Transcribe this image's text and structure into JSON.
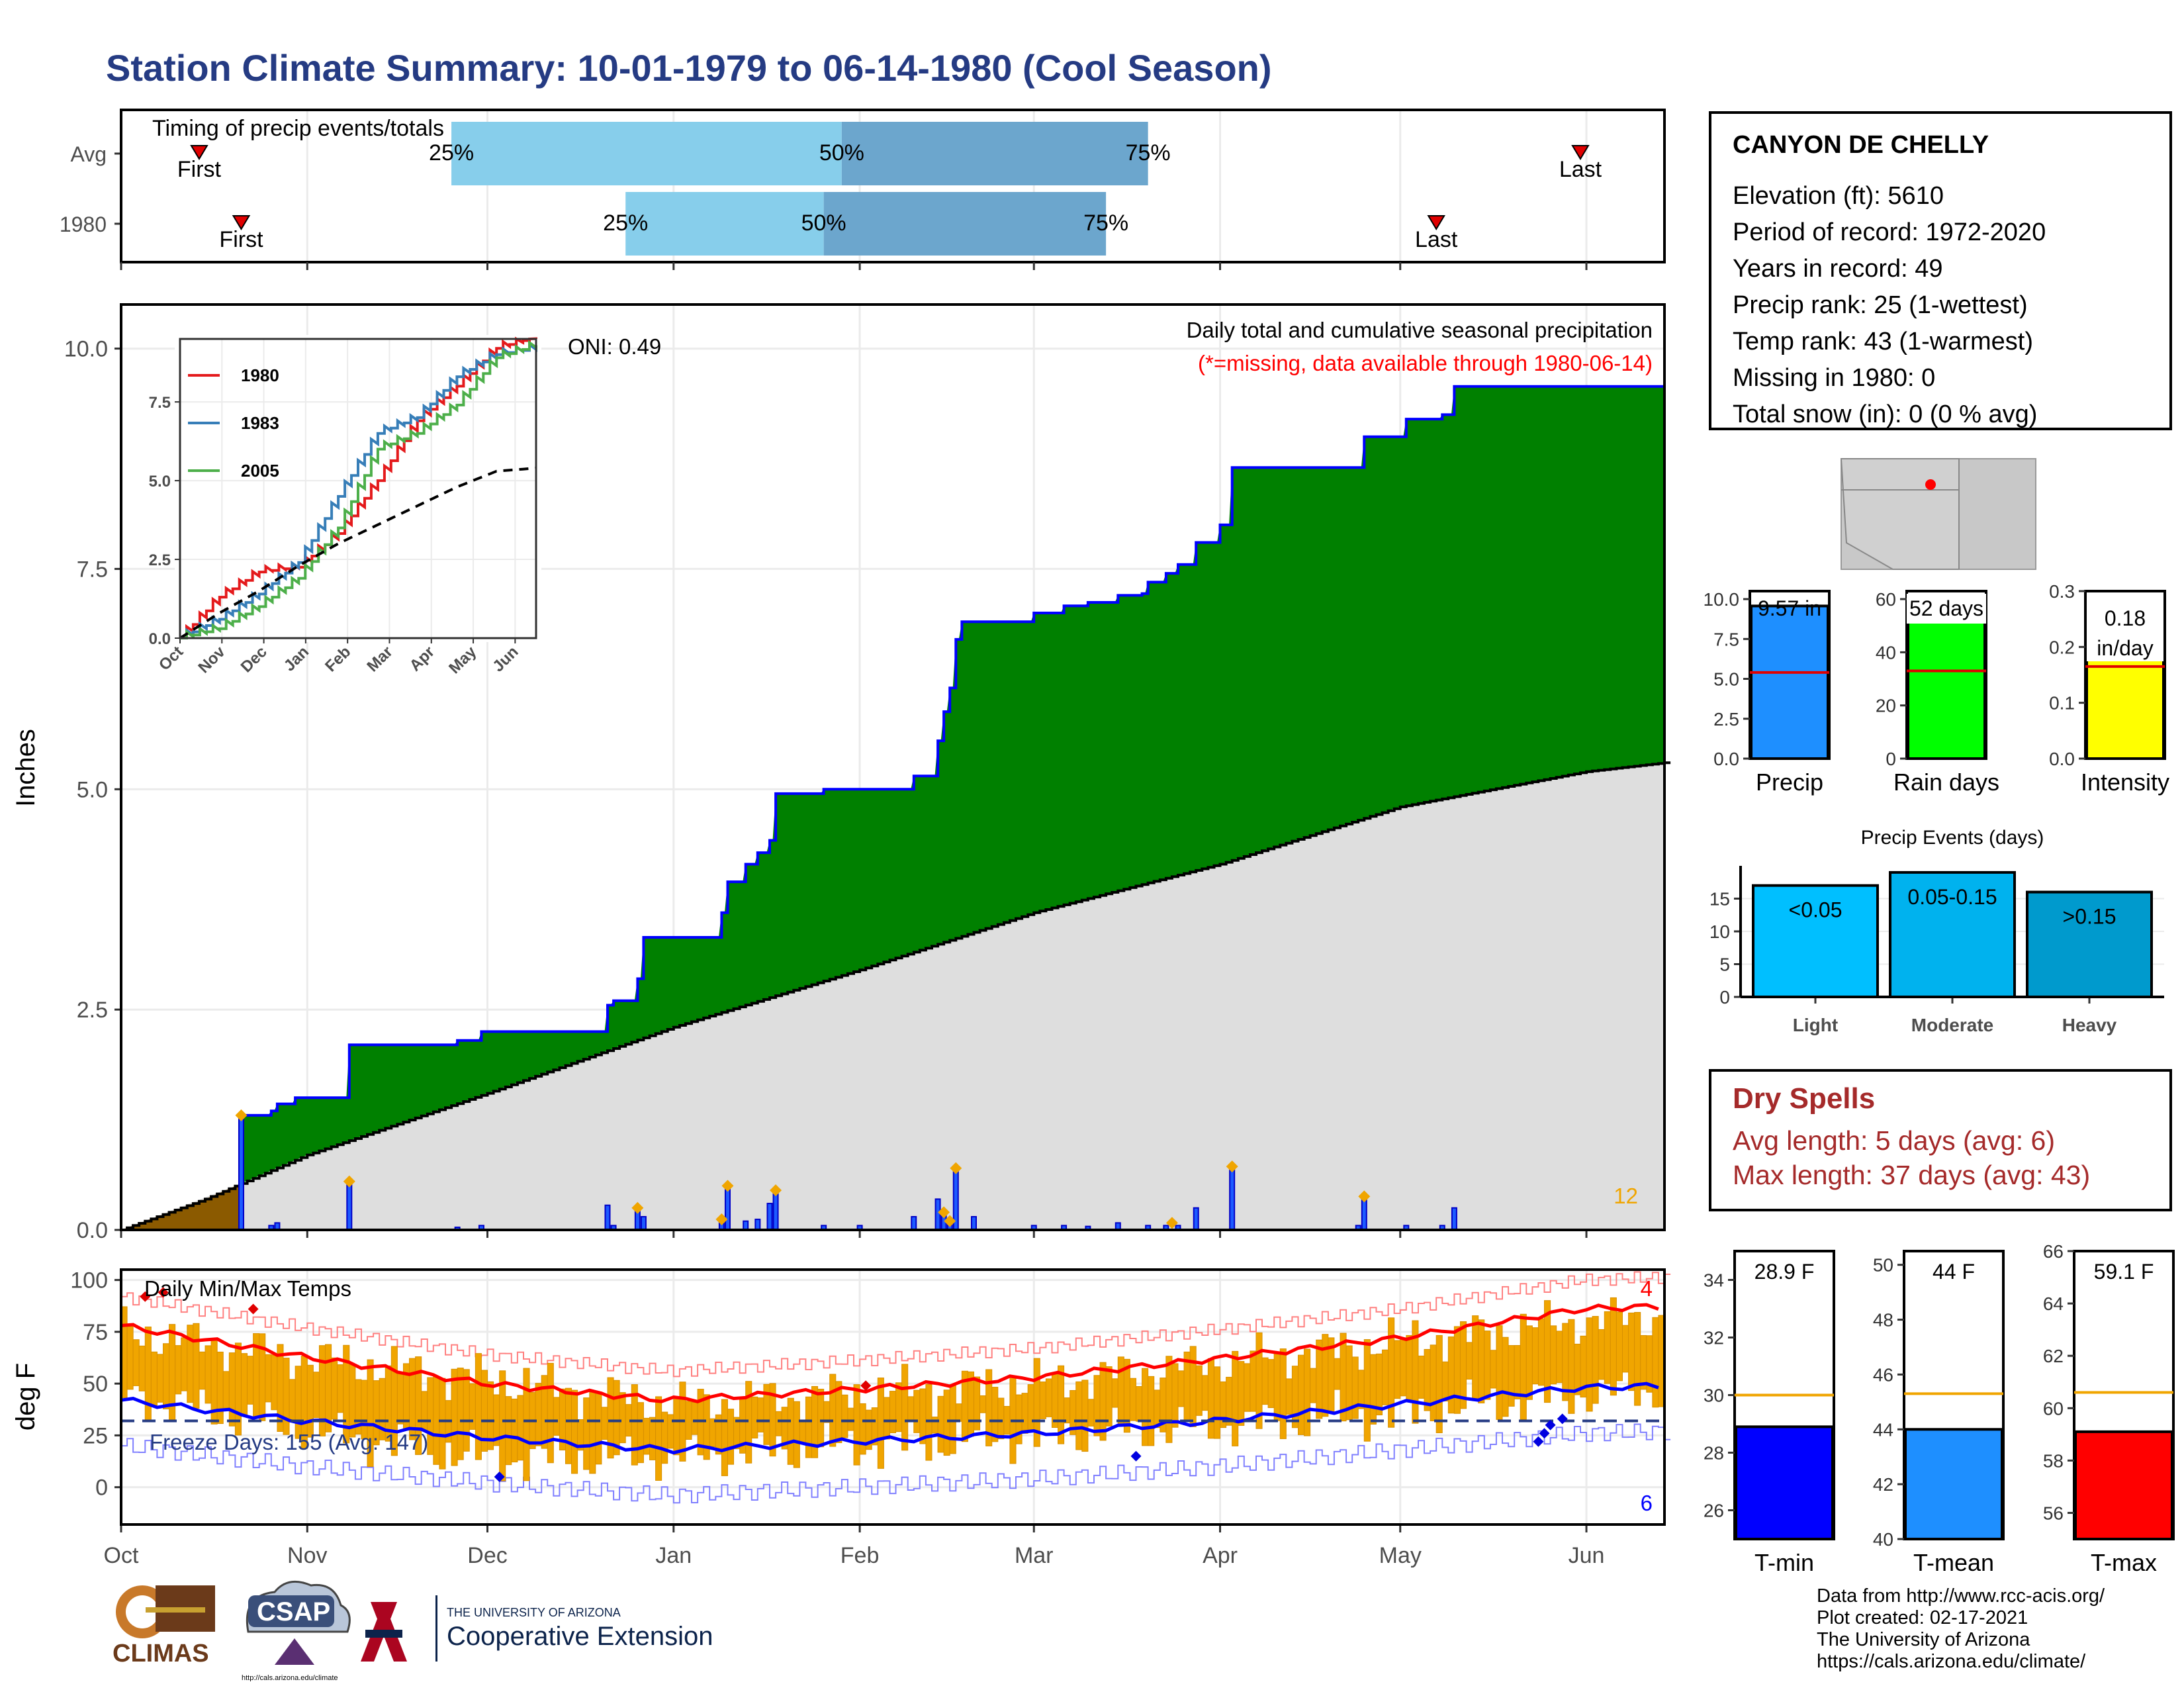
{
  "title": "Station Climate Summary: 10-01-1979 to 06-14-1980 (Cool Season)",
  "colors": {
    "title": "#253b83",
    "green": "#008000",
    "brown": "#8b5a00",
    "blue_line": "#0000ff",
    "orange": "#f0a500",
    "red": "#ff0000",
    "grey": "#dedede"
  },
  "timing": {
    "label": "Timing of precip events/totals",
    "rows": [
      {
        "name": "Avg",
        "first_label": "First",
        "last_label": "Last",
        "p25": "25%",
        "p50": "50%",
        "p75": "75%",
        "first_date": "1979-10-14",
        "p25_date": "1979-11-25",
        "p50_date": "1980-01-29",
        "p75_date": "1980-03-20",
        "last_date": "1980-05-31"
      },
      {
        "name": "1980",
        "first_label": "First",
        "last_label": "Last",
        "p25": "25%",
        "p50": "50%",
        "p75": "75%",
        "first_date": "1979-10-21",
        "p25_date": "1979-12-24",
        "p50_date": "1980-01-26",
        "p75_date": "1980-03-13",
        "last_date": "1980-05-07"
      }
    ]
  },
  "station": {
    "name": "CANYON DE CHELLY",
    "rows": [
      "Elevation (ft): 5610",
      "Period of record: 1972-2020",
      "Years in record: 49",
      "Precip rank: 25 (1-wettest)",
      "Temp rank: 43 (1-warmest)",
      "Missing in 1980: 0",
      "Total snow (in): 0 (0 % avg)"
    ]
  },
  "dry_spells": {
    "heading": "Dry Spells",
    "rows": [
      "Avg length: 5 days (avg: 6)",
      "Max length: 37 days (avg: 43)"
    ]
  },
  "footer": [
    "Data from http://www.rcc-acis.org/",
    "Plot created: 02-17-2021",
    "The University of Arizona",
    "https://cals.arizona.edu/climate/"
  ],
  "logos": {
    "climas": "CLIMAS",
    "csap": "CSAP",
    "csap_url": "http://cals.arizona.edu/climate",
    "ua_small": "THE UNIVERSITY OF ARIZONA",
    "ua_big": "Cooperative Extension"
  },
  "chart_data": [
    {
      "id": "main-precip",
      "type": "area",
      "title": "Daily total and cumulative seasonal precipitation",
      "subtitle": "(*=missing, data available through 1980-06-14)",
      "ylabel": "Inches",
      "ylim": [
        0,
        10.5
      ],
      "yticks": [
        "0.0",
        "2.5",
        "5.0",
        "7.5",
        "10.0"
      ],
      "xlim": [
        "1979-10-01",
        "1980-06-14"
      ],
      "oni": "ONI: 0.49",
      "corner_count": "12",
      "cumulative_1980": [
        {
          "x": "1979-10-01",
          "y": 0
        },
        {
          "x": "1979-10-21",
          "y": 0
        },
        {
          "x": "1979-10-21",
          "y": 1.3
        },
        {
          "x": "1979-10-26",
          "y": 1.35
        },
        {
          "x": "1979-10-27",
          "y": 1.43
        },
        {
          "x": "1979-10-30",
          "y": 1.5
        },
        {
          "x": "1979-11-08",
          "y": 1.53
        },
        {
          "x": "1979-11-08",
          "y": 2.1
        },
        {
          "x": "1979-11-26",
          "y": 2.15
        },
        {
          "x": "1979-11-30",
          "y": 2.25
        },
        {
          "x": "1979-12-20",
          "y": 2.25
        },
        {
          "x": "1979-12-21",
          "y": 2.55
        },
        {
          "x": "1979-12-22",
          "y": 2.6
        },
        {
          "x": "1979-12-26",
          "y": 2.85
        },
        {
          "x": "1979-12-27",
          "y": 3.32
        },
        {
          "x": "1980-01-08",
          "y": 3.32
        },
        {
          "x": "1980-01-09",
          "y": 3.6
        },
        {
          "x": "1980-01-10",
          "y": 3.95
        },
        {
          "x": "1980-01-13",
          "y": 4.15
        },
        {
          "x": "1980-01-15",
          "y": 4.28
        },
        {
          "x": "1980-01-17",
          "y": 4.42
        },
        {
          "x": "1980-01-18",
          "y": 4.95
        },
        {
          "x": "1980-01-25",
          "y": 4.95
        },
        {
          "x": "1980-01-26",
          "y": 5.0
        },
        {
          "x": "1980-02-09",
          "y": 5.0
        },
        {
          "x": "1980-02-10",
          "y": 5.15
        },
        {
          "x": "1980-02-14",
          "y": 5.55
        },
        {
          "x": "1980-02-15",
          "y": 5.88
        },
        {
          "x": "1980-02-16",
          "y": 6.15
        },
        {
          "x": "1980-02-17",
          "y": 6.7
        },
        {
          "x": "1980-02-18",
          "y": 6.9
        },
        {
          "x": "1980-02-29",
          "y": 6.9
        },
        {
          "x": "1980-03-01",
          "y": 7.0
        },
        {
          "x": "1980-03-06",
          "y": 7.08
        },
        {
          "x": "1980-03-10",
          "y": 7.12
        },
        {
          "x": "1980-03-15",
          "y": 7.2
        },
        {
          "x": "1980-03-19",
          "y": 7.22
        },
        {
          "x": "1980-03-20",
          "y": 7.35
        },
        {
          "x": "1980-03-23",
          "y": 7.45
        },
        {
          "x": "1980-03-25",
          "y": 7.55
        },
        {
          "x": "1980-03-28",
          "y": 7.8
        },
        {
          "x": "1980-04-01",
          "y": 8.0
        },
        {
          "x": "1980-04-03",
          "y": 8.65
        },
        {
          "x": "1980-04-24",
          "y": 8.65
        },
        {
          "x": "1980-04-25",
          "y": 9.0
        },
        {
          "x": "1980-05-02",
          "y": 9.2
        },
        {
          "x": "1980-05-08",
          "y": 9.25
        },
        {
          "x": "1980-05-10",
          "y": 9.57
        },
        {
          "x": "1980-06-14",
          "y": 9.57
        }
      ],
      "cumulative_avg": [
        {
          "x": "1979-10-01",
          "y": 0
        },
        {
          "x": "1979-10-15",
          "y": 0.35
        },
        {
          "x": "1979-11-01",
          "y": 0.85
        },
        {
          "x": "1979-12-01",
          "y": 1.55
        },
        {
          "x": "1980-01-01",
          "y": 2.3
        },
        {
          "x": "1980-02-01",
          "y": 2.95
        },
        {
          "x": "1980-03-01",
          "y": 3.6
        },
        {
          "x": "1980-04-01",
          "y": 4.15
        },
        {
          "x": "1980-05-01",
          "y": 4.8
        },
        {
          "x": "1980-06-01",
          "y": 5.2
        },
        {
          "x": "1980-06-14",
          "y": 5.3
        }
      ],
      "daily": [
        {
          "x": "1979-10-21",
          "y": 1.3
        },
        {
          "x": "1979-10-26",
          "y": 0.05
        },
        {
          "x": "1979-10-27",
          "y": 0.08
        },
        {
          "x": "1979-11-08",
          "y": 0.55
        },
        {
          "x": "1979-11-26",
          "y": 0.03
        },
        {
          "x": "1979-11-30",
          "y": 0.05
        },
        {
          "x": "1979-12-21",
          "y": 0.28
        },
        {
          "x": "1979-12-22",
          "y": 0.05
        },
        {
          "x": "1979-12-26",
          "y": 0.25
        },
        {
          "x": "1979-12-27",
          "y": 0.15
        },
        {
          "x": "1980-01-09",
          "y": 0.12
        },
        {
          "x": "1980-01-10",
          "y": 0.5
        },
        {
          "x": "1980-01-13",
          "y": 0.1
        },
        {
          "x": "1980-01-15",
          "y": 0.12
        },
        {
          "x": "1980-01-17",
          "y": 0.3
        },
        {
          "x": "1980-01-18",
          "y": 0.45
        },
        {
          "x": "1980-01-26",
          "y": 0.05
        },
        {
          "x": "1980-02-01",
          "y": 0.05
        },
        {
          "x": "1980-02-10",
          "y": 0.15
        },
        {
          "x": "1980-02-14",
          "y": 0.35
        },
        {
          "x": "1980-02-15",
          "y": 0.2
        },
        {
          "x": "1980-02-16",
          "y": 0.1
        },
        {
          "x": "1980-02-17",
          "y": 0.7
        },
        {
          "x": "1980-02-20",
          "y": 0.15
        },
        {
          "x": "1980-03-01",
          "y": 0.05
        },
        {
          "x": "1980-03-06",
          "y": 0.05
        },
        {
          "x": "1980-03-10",
          "y": 0.04
        },
        {
          "x": "1980-03-15",
          "y": 0.08
        },
        {
          "x": "1980-03-20",
          "y": 0.05
        },
        {
          "x": "1980-03-23",
          "y": 0.05
        },
        {
          "x": "1980-03-25",
          "y": 0.05
        },
        {
          "x": "1980-03-28",
          "y": 0.25
        },
        {
          "x": "1980-04-03",
          "y": 0.72
        },
        {
          "x": "1980-04-24",
          "y": 0.05
        },
        {
          "x": "1980-04-25",
          "y": 0.38
        },
        {
          "x": "1980-05-02",
          "y": 0.05
        },
        {
          "x": "1980-05-08",
          "y": 0.05
        },
        {
          "x": "1980-05-10",
          "y": 0.25
        }
      ],
      "orange_markers": [
        "1979-10-21",
        "1979-11-08",
        "1979-12-26",
        "1980-01-09",
        "1980-01-10",
        "1980-01-18",
        "1980-02-16",
        "1980-02-17",
        "1980-02-15",
        "1980-03-24",
        "1980-04-03",
        "1980-04-25"
      ],
      "xticks": [
        "Oct",
        "Nov",
        "Dec",
        "Jan",
        "Feb",
        "Mar",
        "Apr",
        "May",
        "Jun"
      ]
    },
    {
      "id": "inset",
      "type": "line",
      "xticks": [
        "Oct",
        "Nov",
        "Dec",
        "Jan",
        "Feb",
        "Mar",
        "Apr",
        "May",
        "Jun"
      ],
      "yticks": [
        "0.0",
        "2.5",
        "5.0",
        "7.5"
      ],
      "ylim": [
        0,
        9.5
      ],
      "series": [
        {
          "name": "1980",
          "color": "#e41a1c",
          "values": [
            0,
            1.3,
            2.1,
            2.25,
            3.32,
            5.0,
            6.9,
            8.0,
            9.2,
            9.57
          ]
        },
        {
          "name": "1983",
          "color": "#377eb8",
          "values": [
            0,
            0.6,
            1.4,
            2.4,
            4.5,
            6.5,
            7.0,
            8.3,
            9.0,
            9.2
          ]
        },
        {
          "name": "2005",
          "color": "#4daf4a",
          "values": [
            0,
            0.3,
            1.0,
            1.9,
            3.5,
            6.0,
            6.5,
            7.4,
            8.9,
            9.3
          ]
        },
        {
          "color": "#000000",
          "values": [
            0,
            0.8,
            1.5,
            2.3,
            3.0,
            3.6,
            4.2,
            4.8,
            5.3,
            5.4
          ]
        }
      ]
    },
    {
      "id": "temps",
      "type": "line",
      "title": "Daily Min/Max Temps",
      "ylabel": "deg F",
      "ylim": [
        -18,
        105
      ],
      "yticks": [
        "0",
        "25",
        "50",
        "75",
        "100"
      ],
      "freeze_label": "Freeze Days: 155 (Avg: 147)",
      "freeze_line": 32,
      "max_record_count": "4",
      "min_record_count": "6",
      "avg_max_monthly": [
        78,
        63,
        50,
        42,
        47,
        53,
        62,
        72,
        86,
        89
      ],
      "avg_min_monthly": [
        42,
        32,
        24,
        18,
        22,
        26,
        32,
        40,
        48,
        50
      ],
      "daily_max_monthly": [
        75,
        62,
        52,
        40,
        45,
        50,
        60,
        70,
        80,
        85
      ],
      "daily_min_monthly": [
        45,
        28,
        14,
        15,
        20,
        25,
        30,
        36,
        45,
        50
      ]
    },
    {
      "id": "precip-bars",
      "type": "bar",
      "panels": [
        {
          "category": "Precip",
          "value_label": "9.57 in",
          "value": 9.57,
          "avg": 5.4,
          "ylim": [
            0,
            10.5
          ],
          "yticks": [
            "0.0",
            "2.5",
            "5.0",
            "7.5",
            "10.0"
          ],
          "color": "#1e8fff"
        },
        {
          "category": "Rain days",
          "value_label": "52 days",
          "value": 52,
          "avg": 33,
          "ylim": [
            0,
            63
          ],
          "yticks": [
            "0",
            "20",
            "40",
            "60"
          ],
          "color": "#00ff00"
        },
        {
          "category": "Intensity",
          "value_label": "0.18 in/day",
          "value": 0.18,
          "avg": 0.165,
          "ylim": [
            0,
            0.3
          ],
          "yticks": [
            "0.0",
            "0.1",
            "0.2",
            "0.3"
          ],
          "color": "#ffff00"
        }
      ]
    },
    {
      "id": "precip-events",
      "type": "bar",
      "title": "Precip Events (days)",
      "categories": [
        "Light",
        "Moderate",
        "Heavy"
      ],
      "bar_labels": [
        "<0.05",
        "0.05-0.15",
        ">0.15"
      ],
      "values": [
        17,
        19,
        16
      ],
      "ylim": [
        0,
        20
      ],
      "yticks": [
        "0",
        "5",
        "10",
        "15"
      ],
      "colors": [
        "#00bfff",
        "#00b2ee",
        "#009acd"
      ]
    },
    {
      "id": "temp-bars",
      "type": "bar",
      "panels": [
        {
          "category": "T-min",
          "value_label": "28.9 F",
          "value": 28.9,
          "avg": 30.0,
          "ylim": [
            25,
            35
          ],
          "yticks": [
            "26",
            "28",
            "30",
            "32",
            "34"
          ],
          "color": "#0000ff"
        },
        {
          "category": "T-mean",
          "value_label": "44 F",
          "value": 44.0,
          "avg": 45.3,
          "ylim": [
            40,
            50.5
          ],
          "yticks": [
            "40",
            "42",
            "44",
            "46",
            "48",
            "50"
          ],
          "color": "#1e8fff"
        },
        {
          "category": "T-max",
          "value_label": "59.1 F",
          "value": 59.1,
          "avg": 60.6,
          "ylim": [
            55,
            66
          ],
          "yticks": [
            "56",
            "58",
            "60",
            "62",
            "64",
            "66"
          ],
          "color": "#ff0000"
        }
      ]
    }
  ]
}
